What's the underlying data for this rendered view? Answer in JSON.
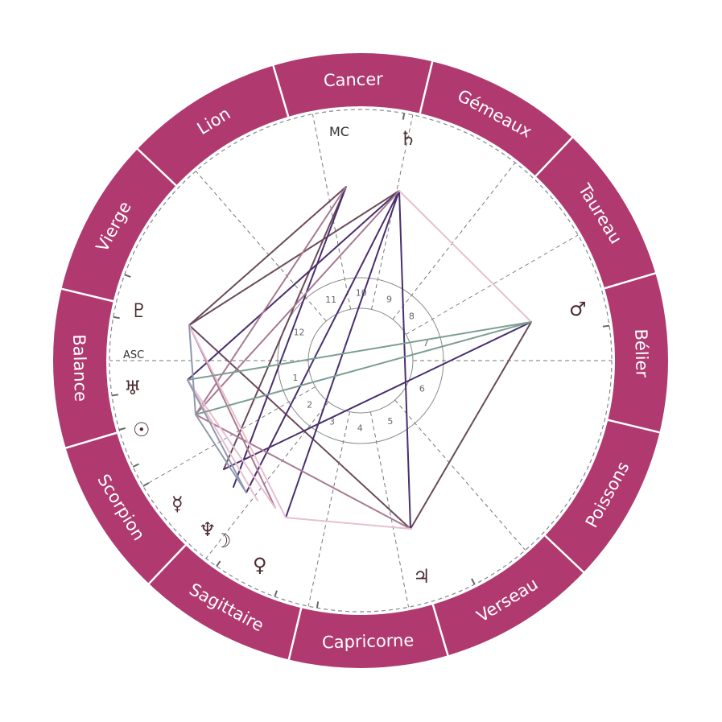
{
  "colors": {
    "ring": "#b03a6f",
    "ring_divider": "#ffffff",
    "aspect_dark": "#6a4a5a",
    "aspect_purple": "#4a2e6e",
    "aspect_mauve": "#a87a92",
    "aspect_pink": "#e8bfcf",
    "aspect_green": "#7c9e90",
    "aspect_slate": "#9098ae"
  },
  "signs": [
    "Cancer",
    "Gémeaux",
    "Taureau",
    "Bélier",
    "Poissons",
    "Verseau",
    "Capricorne",
    "Sagittaire",
    "Scorpion",
    "Balance",
    "Vierge",
    "Lion"
  ],
  "houses": [
    "1",
    "2",
    "3",
    "4",
    "5",
    "6",
    "7",
    "8",
    "9",
    "10",
    "11",
    "12"
  ],
  "angles": {
    "asc": "ASC",
    "mc": "MC"
  },
  "planets": [
    {
      "name": "saturn",
      "glyph": "♄"
    },
    {
      "name": "mars",
      "glyph": "♂"
    },
    {
      "name": "jupiter",
      "glyph": "♃"
    },
    {
      "name": "venus",
      "glyph": "♀"
    },
    {
      "name": "moon",
      "glyph": "☽"
    },
    {
      "name": "neptune",
      "glyph": "♆"
    },
    {
      "name": "mercury",
      "glyph": "☿"
    },
    {
      "name": "sun",
      "glyph": "☉"
    },
    {
      "name": "uranus",
      "glyph": "♅"
    },
    {
      "name": "pluto",
      "glyph": "♇"
    }
  ]
}
